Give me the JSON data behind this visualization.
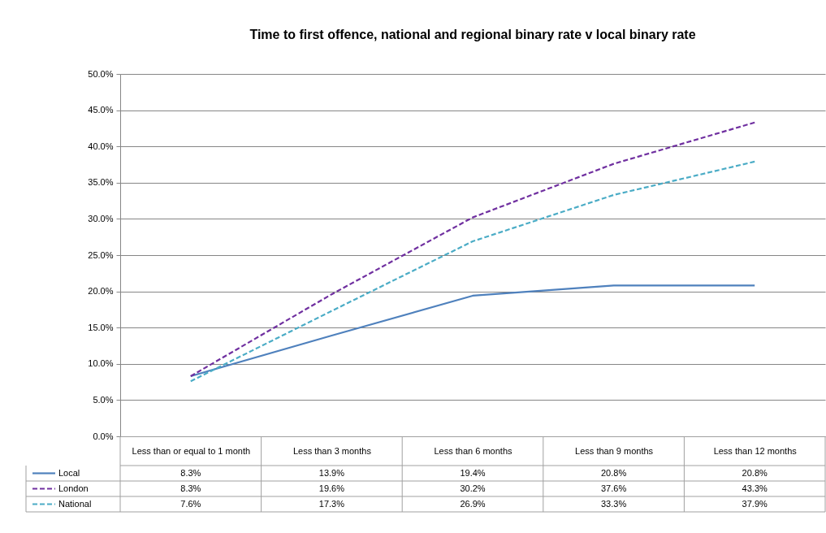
{
  "chart_data": {
    "type": "line",
    "title": "Time to first offence, national and regional binary rate v local binary rate",
    "categories": [
      "Less than or equal to 1 month",
      "Less than 3 months",
      "Less than 6 months",
      "Less than 9 months",
      "Less than 12 months"
    ],
    "series": [
      {
        "name": "Local",
        "color": "#4f81bd",
        "line_style": "solid",
        "values": [
          8.3,
          13.9,
          19.4,
          20.8,
          20.8
        ],
        "value_labels": [
          "8.3%",
          "13.9%",
          "19.4%",
          "20.8%",
          "20.8%"
        ]
      },
      {
        "name": "London",
        "color": "#7030a0",
        "line_style": "dashed",
        "values": [
          8.3,
          19.6,
          30.2,
          37.6,
          43.3
        ],
        "value_labels": [
          "8.3%",
          "19.6%",
          "30.2%",
          "37.6%",
          "43.3%"
        ]
      },
      {
        "name": "National",
        "color": "#4bacc6",
        "line_style": "dashed",
        "values": [
          7.6,
          17.3,
          26.9,
          33.3,
          37.9
        ],
        "value_labels": [
          "7.6%",
          "17.3%",
          "26.9%",
          "33.3%",
          "37.9%"
        ]
      }
    ],
    "ylim": [
      0,
      50
    ],
    "yticks": [
      {
        "value": 0,
        "label": "0.0%"
      },
      {
        "value": 5,
        "label": "5.0%"
      },
      {
        "value": 10,
        "label": "10.0%"
      },
      {
        "value": 15,
        "label": "15.0%"
      },
      {
        "value": 20,
        "label": "20.0%"
      },
      {
        "value": 25,
        "label": "25.0%"
      },
      {
        "value": 30,
        "label": "30.0%"
      },
      {
        "value": 35,
        "label": "35.0%"
      },
      {
        "value": 40,
        "label": "40.0%"
      },
      {
        "value": 45,
        "label": "45.0%"
      },
      {
        "value": 50,
        "label": "50.0%"
      }
    ],
    "grid": "y",
    "legend": "bottom",
    "marker": "none"
  }
}
